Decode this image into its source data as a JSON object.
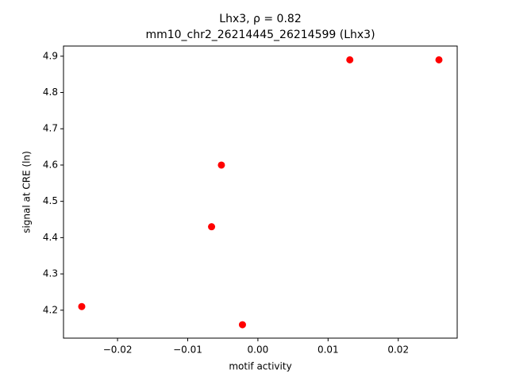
{
  "chart_data": {
    "type": "scatter",
    "title": "Lhx3, ρ = 0.82",
    "subtitle": "mm10_chr2_26214445_26214599 (Lhx3)",
    "x_label": "motif activity",
    "y_label": "signal at CRE (ln)",
    "color": "#ff0000",
    "x": [
      -0.0251,
      -0.0066,
      -0.0052,
      -0.0022,
      0.0131,
      0.0258
    ],
    "values": [
      4.21,
      4.43,
      4.6,
      4.16,
      4.89,
      4.89
    ],
    "xlim": [
      -0.0277,
      0.0284
    ],
    "ylim": [
      4.123,
      4.928
    ],
    "xticks": [
      {
        "value": -0.02,
        "label": "−0.02"
      },
      {
        "value": -0.01,
        "label": "−0.01"
      },
      {
        "value": 0,
        "label": "0.00"
      },
      0.01,
      0.02
    ],
    "yticks": [
      4.2,
      4.3,
      4.4,
      4.5,
      4.6,
      4.7,
      4.8,
      4.9
    ]
  }
}
